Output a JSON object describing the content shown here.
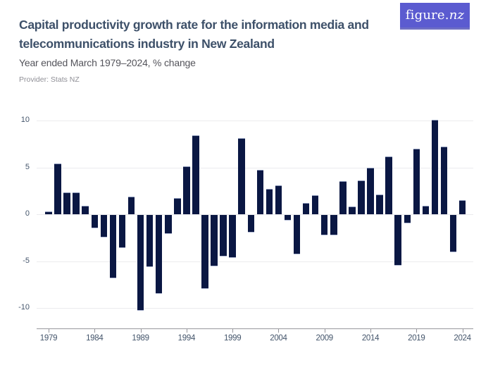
{
  "header": {
    "title": "Capital productivity growth rate for the information media and telecommunications industry in New Zealand",
    "subtitle": "Year ended March 1979–2024, % change",
    "provider": "Provider: Stats NZ",
    "logo_text": "figure.",
    "logo_text_suffix": "nz"
  },
  "colors": {
    "bar": "#0a1743",
    "title": "#3d5069",
    "subtitle": "#54545b",
    "provider": "#8f8f96",
    "axis_label": "#44556b",
    "gridline": "#ebebee",
    "axis_line": "#97979d",
    "logo_background": "#5b5bd0"
  },
  "chart_data": {
    "type": "bar",
    "title": "Capital productivity growth rate for the information media and telecommunications industry in New Zealand",
    "subtitle": "Year ended March 1979–2024, % change",
    "xlabel": "",
    "ylabel": "% change",
    "grid": true,
    "legend": false,
    "ylim": [
      -12,
      11.5
    ],
    "yticks": [
      10,
      5,
      0,
      -5,
      -10
    ],
    "xticks": [
      1979,
      1984,
      1989,
      1994,
      1999,
      2004,
      2009,
      2014,
      2019,
      2024
    ],
    "categories": [
      1979,
      1980,
      1981,
      1982,
      1983,
      1984,
      1985,
      1986,
      1987,
      1988,
      1989,
      1990,
      1991,
      1992,
      1993,
      1994,
      1995,
      1996,
      1997,
      1998,
      1999,
      2000,
      2001,
      2002,
      2003,
      2004,
      2005,
      2006,
      2007,
      2008,
      2009,
      2010,
      2011,
      2012,
      2013,
      2014,
      2015,
      2016,
      2017,
      2018,
      2019,
      2020,
      2021,
      2022,
      2023,
      2024
    ],
    "values": [
      0.3,
      5.4,
      2.3,
      2.3,
      0.9,
      -1.4,
      -2.4,
      -6.8,
      -3.5,
      1.9,
      -10.2,
      -5.6,
      -8.4,
      -2.0,
      1.7,
      5.1,
      8.4,
      -7.9,
      -5.5,
      -4.4,
      -4.6,
      8.1,
      -1.9,
      4.7,
      2.7,
      3.1,
      -0.6,
      -4.2,
      1.2,
      2.0,
      -2.2,
      -2.2,
      3.5,
      0.8,
      3.6,
      5.0,
      2.1,
      6.2,
      -5.4,
      -0.9,
      7.0,
      0.9,
      10.1,
      7.2,
      -4.0,
      1.5
    ]
  }
}
